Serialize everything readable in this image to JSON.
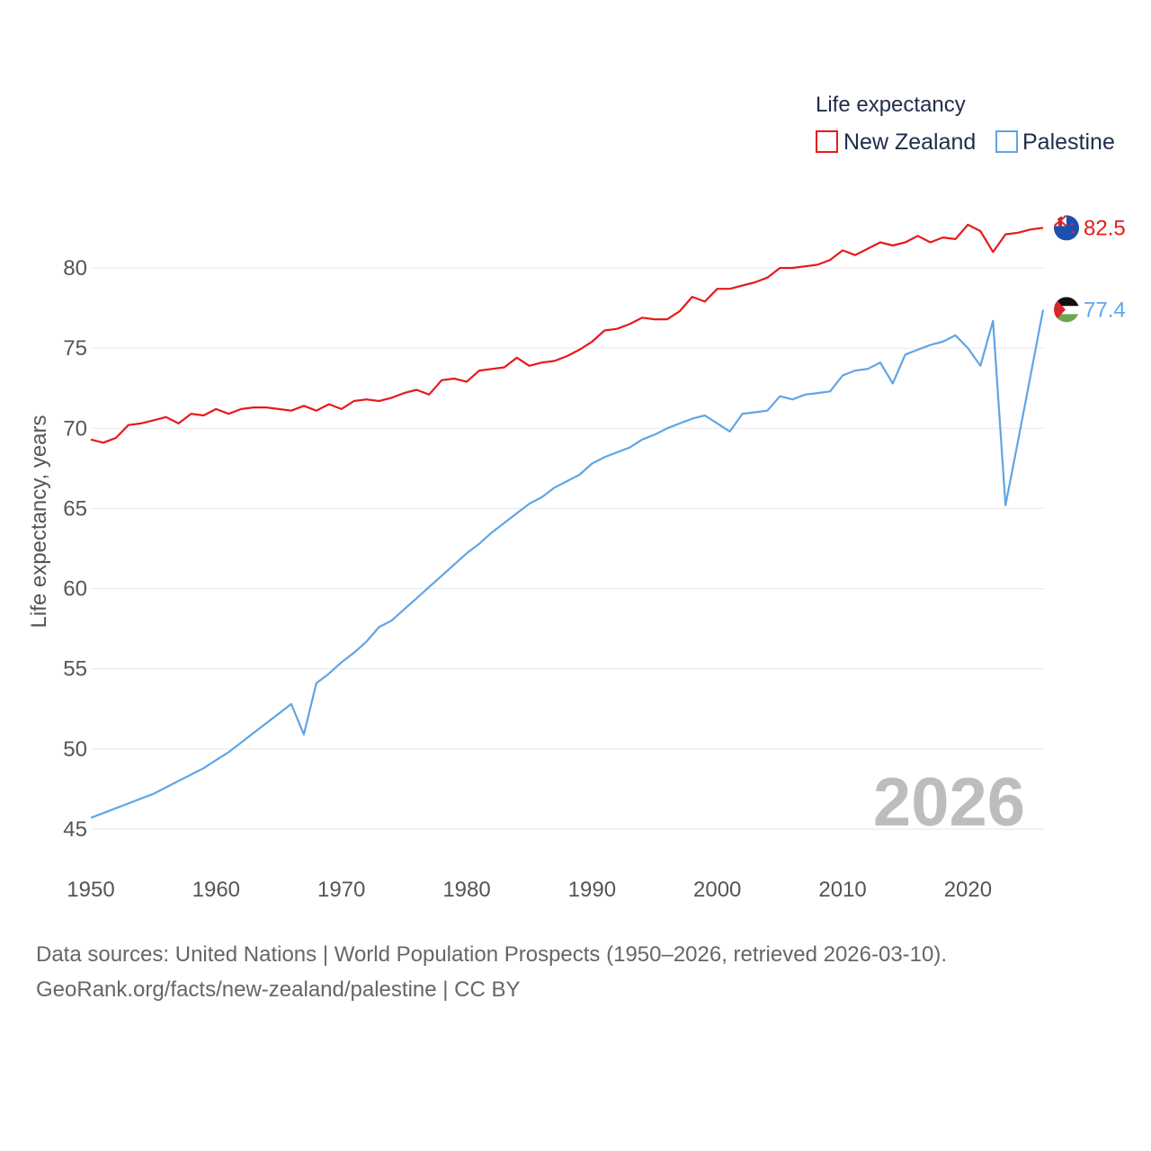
{
  "chart_data": {
    "type": "line",
    "title": "",
    "xlabel": "",
    "ylabel": "Life expectancy, years",
    "xlim": [
      1950,
      2026
    ],
    "ylim": [
      45,
      85
    ],
    "yticks": [
      45,
      50,
      55,
      60,
      65,
      70,
      75,
      80
    ],
    "xticks": [
      1950,
      1960,
      1970,
      1980,
      1990,
      2000,
      2010,
      2020
    ],
    "grid": true,
    "legend_title": "Life expectancy",
    "legend_position": "top-right",
    "current_year_label": "2026",
    "x": [
      1950,
      1951,
      1952,
      1953,
      1954,
      1955,
      1956,
      1957,
      1958,
      1959,
      1960,
      1961,
      1962,
      1963,
      1964,
      1965,
      1966,
      1967,
      1968,
      1969,
      1970,
      1971,
      1972,
      1973,
      1974,
      1975,
      1976,
      1977,
      1978,
      1979,
      1980,
      1981,
      1982,
      1983,
      1984,
      1985,
      1986,
      1987,
      1988,
      1989,
      1990,
      1991,
      1992,
      1993,
      1994,
      1995,
      1996,
      1997,
      1998,
      1999,
      2000,
      2001,
      2002,
      2003,
      2004,
      2005,
      2006,
      2007,
      2008,
      2009,
      2010,
      2011,
      2012,
      2013,
      2014,
      2015,
      2016,
      2017,
      2018,
      2019,
      2020,
      2021,
      2022,
      2023,
      2024,
      2025,
      2026
    ],
    "series": [
      {
        "name": "New Zealand",
        "color": "#e8191a",
        "end_label": "82.5",
        "flag": "new-zealand-flag-icon",
        "values": [
          69.3,
          69.1,
          69.4,
          70.2,
          70.3,
          70.5,
          70.7,
          70.3,
          70.9,
          70.8,
          71.2,
          70.9,
          71.2,
          71.3,
          71.3,
          71.2,
          71.1,
          71.4,
          71.1,
          71.5,
          71.2,
          71.7,
          71.8,
          71.7,
          71.9,
          72.2,
          72.4,
          72.1,
          73.0,
          73.1,
          72.9,
          73.6,
          73.7,
          73.8,
          74.4,
          73.9,
          74.1,
          74.2,
          74.5,
          74.9,
          75.4,
          76.1,
          76.2,
          76.5,
          76.9,
          76.8,
          76.8,
          77.3,
          78.2,
          77.9,
          78.7,
          78.7,
          78.9,
          79.1,
          79.4,
          80.0,
          80.0,
          80.1,
          80.2,
          80.5,
          81.1,
          80.8,
          81.2,
          81.6,
          81.4,
          81.6,
          82.0,
          81.6,
          81.9,
          81.8,
          82.7,
          82.3,
          81.0,
          82.1,
          82.2,
          82.4,
          82.5
        ]
      },
      {
        "name": "Palestine",
        "color": "#60a5e6",
        "end_label": "77.4",
        "flag": "palestine-flag-icon",
        "values": [
          45.7,
          46.0,
          46.3,
          46.6,
          46.9,
          47.2,
          47.6,
          48.0,
          48.4,
          48.8,
          49.3,
          49.8,
          50.4,
          51.0,
          51.6,
          52.2,
          52.8,
          50.9,
          54.1,
          54.7,
          55.4,
          56.0,
          56.7,
          57.6,
          58.0,
          58.7,
          59.4,
          60.1,
          60.8,
          61.5,
          62.2,
          62.8,
          63.5,
          64.1,
          64.7,
          65.3,
          65.7,
          66.3,
          66.7,
          67.1,
          67.8,
          68.2,
          68.5,
          68.8,
          69.3,
          69.6,
          70.0,
          70.3,
          70.6,
          70.8,
          70.3,
          69.8,
          70.9,
          71.0,
          71.1,
          72.0,
          71.8,
          72.1,
          72.2,
          72.3,
          73.3,
          73.6,
          73.7,
          74.1,
          72.8,
          74.6,
          74.9,
          75.2,
          75.4,
          75.8,
          75.0,
          73.9,
          76.7,
          65.2,
          69.2,
          73.3,
          77.4
        ]
      }
    ]
  },
  "footer": {
    "line1": "Data sources: United Nations | World Population Prospects (1950–2026, retrieved 2026-03-10).",
    "line2": "GeoRank.org/facts/new-zealand/palestine | CC BY"
  }
}
